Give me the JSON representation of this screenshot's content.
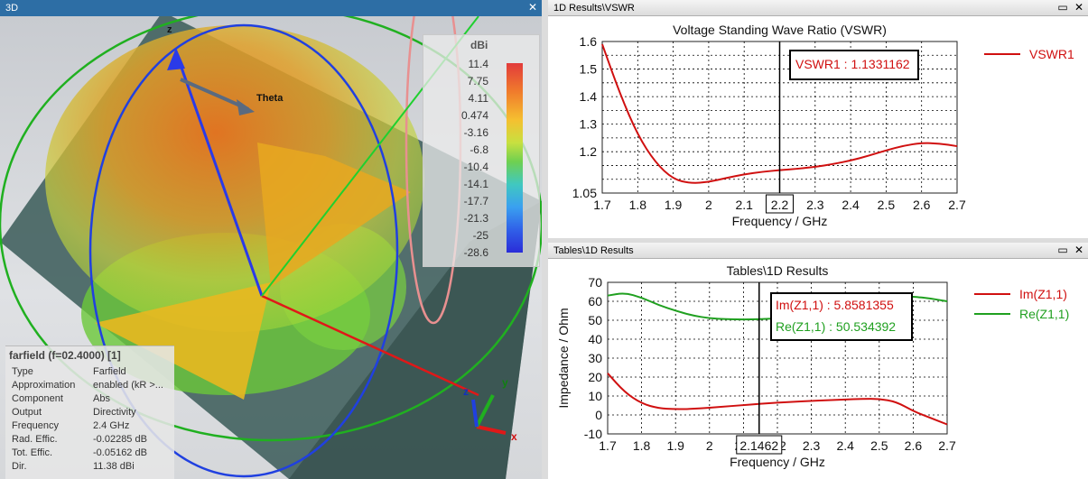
{
  "view3d": {
    "tab_title": "3D",
    "theta_label": "Theta",
    "z_top_label": "z",
    "legend": {
      "unit": "dBi",
      "ticks": [
        "11.4",
        "7.75",
        "4.11",
        "0.474",
        "-3.16",
        "-6.8",
        "-10.4",
        "-14.1",
        "-17.7",
        "-21.3",
        "-25",
        "-28.6"
      ]
    },
    "info": {
      "title": "farfield (f=02.4000) [1]",
      "rows": [
        {
          "k": "Type",
          "v": "Farfield"
        },
        {
          "k": "Approximation",
          "v": "enabled (kR >..."
        },
        {
          "k": "Component",
          "v": "Abs"
        },
        {
          "k": "Output",
          "v": "Directivity"
        },
        {
          "k": "Frequency",
          "v": "2.4 GHz"
        },
        {
          "k": "Rad. Effic.",
          "v": "-0.02285 dB"
        },
        {
          "k": "Tot. Effic.",
          "v": "-0.05162 dB"
        },
        {
          "k": "Dir.",
          "v": "11.38 dBi"
        }
      ]
    },
    "axes": {
      "x": "x",
      "y": "y",
      "z": "z"
    }
  },
  "vswr_panel": {
    "tab_title": "1D Results\\VSWR"
  },
  "tables_panel": {
    "tab_title": "Tables\\1D Results"
  },
  "chart_data": [
    {
      "type": "line",
      "title": "Voltage Standing Wave Ratio (VSWR)",
      "xlabel": "Frequency / GHz",
      "ylabel": "",
      "xlim": [
        1.7,
        2.7
      ],
      "ylim": [
        1.05,
        1.6
      ],
      "xticks": [
        "1.7",
        "1.8",
        "1.9",
        "2",
        "2.1",
        "2.2",
        "2.3",
        "2.4",
        "2.5",
        "2.6",
        "2.7"
      ],
      "yticks": [
        "1.05",
        "1.2",
        "1.3",
        "1.4",
        "1.5",
        "1.6"
      ],
      "grid": true,
      "legend_position": "right",
      "marker": {
        "x": 2.2,
        "label": "2.2"
      },
      "annotation": "VSWR1 : 1.1331162",
      "series": [
        {
          "name": "VSWR1",
          "color": "#d01010",
          "x": [
            1.7,
            1.75,
            1.8,
            1.85,
            1.9,
            1.95,
            2.0,
            2.05,
            2.1,
            2.15,
            2.2,
            2.25,
            2.3,
            2.35,
            2.4,
            2.45,
            2.5,
            2.55,
            2.6,
            2.65,
            2.7
          ],
          "y": [
            1.59,
            1.41,
            1.26,
            1.16,
            1.1,
            1.085,
            1.09,
            1.105,
            1.118,
            1.127,
            1.133,
            1.138,
            1.145,
            1.155,
            1.168,
            1.185,
            1.205,
            1.222,
            1.232,
            1.23,
            1.22
          ]
        }
      ]
    },
    {
      "type": "line",
      "title": "Tables\\1D Results",
      "xlabel": "Frequency / GHz",
      "ylabel": "Impedance / Ohm",
      "xlim": [
        1.7,
        2.7
      ],
      "ylim": [
        -10,
        70
      ],
      "xticks": [
        "1.7",
        "1.8",
        "1.9",
        "2",
        "2.1",
        "2.2",
        "2.3",
        "2.4",
        "2.5",
        "2.6",
        "2.7"
      ],
      "yticks": [
        "-10",
        "0",
        "10",
        "20",
        "30",
        "40",
        "50",
        "60",
        "70"
      ],
      "grid": true,
      "legend_position": "right",
      "marker": {
        "x": 2.1462,
        "label": "2.1462"
      },
      "annotations": [
        "Im(Z1,1) : 5.8581355",
        "Re(Z1,1) : 50.534392"
      ],
      "series": [
        {
          "name": "Im(Z1,1)",
          "color": "#d01010",
          "x": [
            1.7,
            1.75,
            1.8,
            1.85,
            1.9,
            1.95,
            2.0,
            2.05,
            2.1,
            2.15,
            2.2,
            2.25,
            2.3,
            2.35,
            2.4,
            2.45,
            2.5,
            2.55,
            2.6,
            2.65,
            2.7
          ],
          "y": [
            22,
            12,
            6,
            3.5,
            3,
            3.2,
            3.8,
            4.5,
            5.2,
            5.9,
            6.5,
            7,
            7.4,
            7.8,
            8.2,
            8.5,
            8.5,
            7,
            2,
            -1.5,
            -5
          ]
        },
        {
          "name": "Re(Z1,1)",
          "color": "#20a020",
          "x": [
            1.7,
            1.75,
            1.8,
            1.85,
            1.9,
            1.95,
            2.0,
            2.05,
            2.1,
            2.15,
            2.2,
            2.25,
            2.3,
            2.35,
            2.4,
            2.45,
            2.5,
            2.55,
            2.6,
            2.65,
            2.7
          ],
          "y": [
            63,
            64.5,
            62,
            58,
            55,
            52.5,
            51,
            50.5,
            50.4,
            50.5,
            51,
            51.5,
            52.5,
            54,
            56,
            58.5,
            61,
            62.5,
            62.5,
            61.5,
            60
          ]
        }
      ]
    }
  ]
}
